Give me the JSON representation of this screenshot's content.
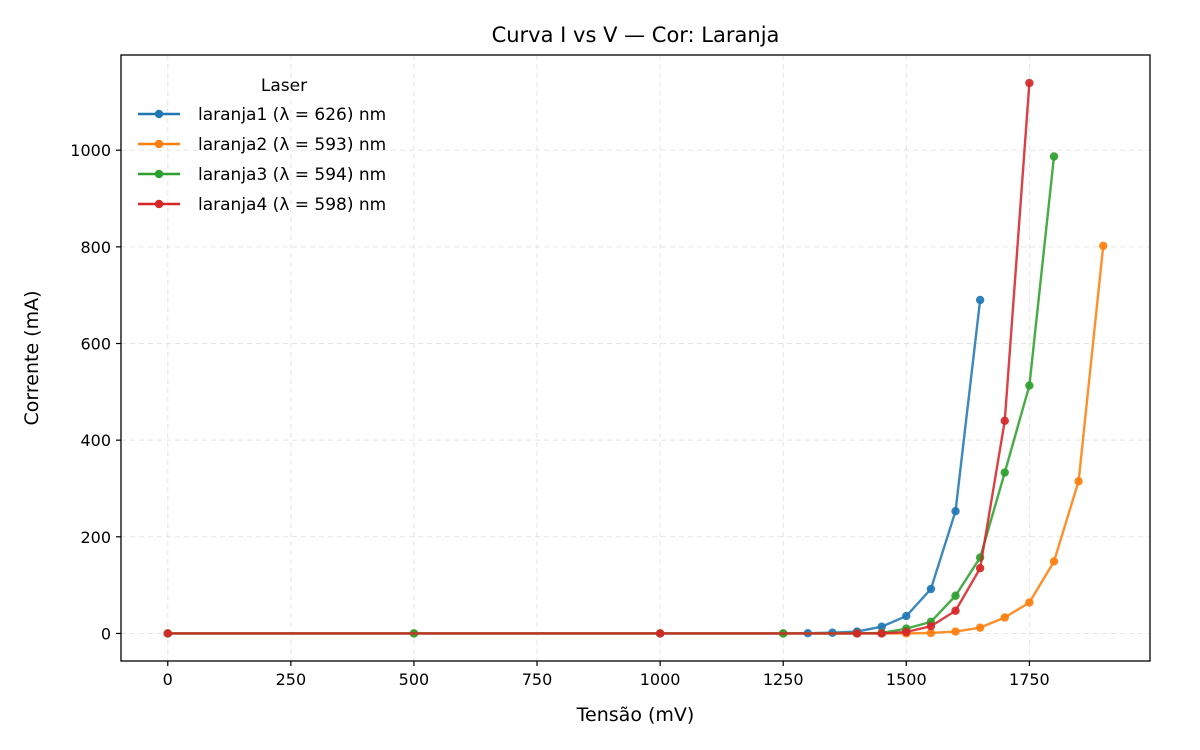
{
  "chart_data": {
    "type": "line",
    "title": "Curva I vs V — Cor: Laranja",
    "xlabel": "Tensão (mV)",
    "ylabel": "Corrente (mA)",
    "xlim": [
      -95,
      1995
    ],
    "ylim": [
      -57,
      1197
    ],
    "xticks": [
      0,
      250,
      500,
      750,
      1000,
      1250,
      1500,
      1750
    ],
    "yticks": [
      0,
      200,
      400,
      600,
      800,
      1000
    ],
    "grid": true,
    "legend": {
      "title": "Laser",
      "placement": "top-left"
    },
    "series": [
      {
        "name": "laranja1 (λ = 626) nm",
        "color": "#1f77b4",
        "x": [
          0,
          500,
          1000,
          1250,
          1300,
          1350,
          1400,
          1450,
          1500,
          1550,
          1600,
          1650
        ],
        "y": [
          0,
          0,
          0,
          0,
          0.5,
          1.5,
          4,
          14,
          36,
          92,
          253,
          690
        ]
      },
      {
        "name": "laranja2 (λ = 593) nm",
        "color": "#ff7f0e",
        "x": [
          0,
          500,
          1000,
          1250,
          1400,
          1450,
          1500,
          1550,
          1600,
          1650,
          1700,
          1750,
          1800,
          1850,
          1900
        ],
        "y": [
          0,
          0,
          0,
          0,
          0,
          0,
          0,
          1,
          4,
          12,
          33,
          64,
          149,
          315,
          802
        ]
      },
      {
        "name": "laranja3 (λ = 594) nm",
        "color": "#2ca02c",
        "x": [
          0,
          500,
          1000,
          1250,
          1400,
          1450,
          1500,
          1550,
          1600,
          1650,
          1700,
          1750,
          1800
        ],
        "y": [
          0,
          0,
          0,
          0,
          0,
          1,
          10,
          24,
          78,
          157,
          333,
          513,
          987
        ]
      },
      {
        "name": "laranja4 (λ = 598) nm",
        "color": "#d62728",
        "x": [
          0,
          1000,
          1400,
          1450,
          1500,
          1550,
          1600,
          1650,
          1700,
          1750
        ],
        "y": [
          0,
          0,
          0,
          0,
          3,
          15,
          47,
          135,
          440,
          1139
        ]
      }
    ]
  }
}
